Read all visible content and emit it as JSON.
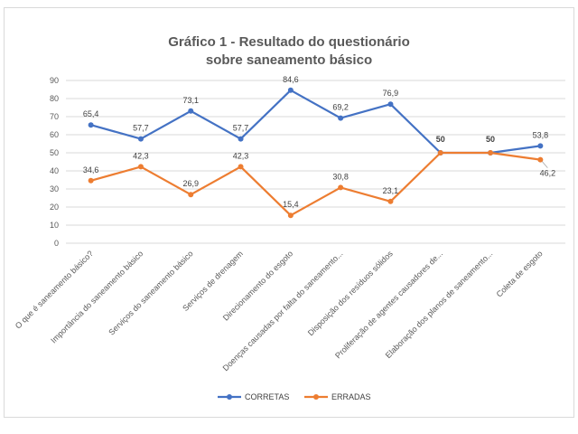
{
  "chart_data": {
    "type": "line",
    "title": [
      "Gráfico 1 - Resultado do questionário",
      "sobre saneamento básico"
    ],
    "categories": [
      "O que é saneamento básico?",
      "Importância do saneamento básico",
      "Serviços do saneamento básico",
      "Serviços de drenagem",
      "Direcionamento do esgoto",
      "Doenças causadas por falta do saneamento...",
      "Disposição dos resíduos sólidos",
      "Proliferação de agentes causadores de...",
      "Elaboração dos planos de saneamento...",
      "Coleta de esgoto"
    ],
    "series": [
      {
        "name": "CORRETAS",
        "color": "#4472c4",
        "values": [
          65.4,
          57.7,
          73.1,
          57.7,
          84.6,
          69.2,
          76.9,
          50,
          50,
          53.8
        ],
        "labels": [
          "65,4",
          "57,7",
          "73,1",
          "57,7",
          "84,6",
          "69,2",
          "76,9",
          "50",
          "50",
          "53,8"
        ]
      },
      {
        "name": "ERRADAS",
        "color": "#ed7d31",
        "values": [
          34.6,
          42.3,
          26.9,
          42.3,
          15.4,
          30.8,
          23.1,
          50,
          50,
          46.2
        ],
        "labels": [
          "34,6",
          "42,3",
          "26,9",
          "42,3",
          "15,4",
          "30,8",
          "23,1",
          "",
          "",
          "46,2"
        ]
      }
    ],
    "ylim": [
      0,
      90
    ],
    "yticks": [
      0,
      10,
      20,
      30,
      40,
      50,
      60,
      70,
      80,
      90
    ],
    "grid": true,
    "legend": "bottom"
  }
}
